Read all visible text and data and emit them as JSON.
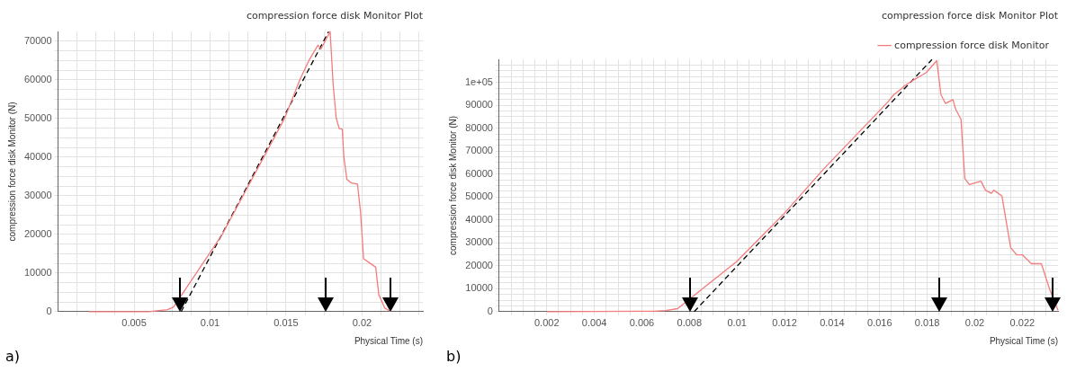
{
  "chart_data": [
    {
      "type": "line",
      "title": "compression force disk Monitor Plot",
      "xlabel": "Physical Time (s)",
      "ylabel": "compression force disk Monitor (N)",
      "annotations": [
        "a)"
      ],
      "xlim": [
        0,
        0.024
      ],
      "ylim": [
        0,
        72500
      ],
      "xticks": [
        {
          "value": 0.00125,
          "label": null
        },
        {
          "value": 0.0025,
          "label": null
        },
        {
          "value": 0.00375,
          "label": null
        },
        0.005,
        {
          "value": 0.00625,
          "label": null
        },
        {
          "value": 0.0075,
          "label": null
        },
        {
          "value": 0.00875,
          "label": null
        },
        0.01,
        {
          "value": 0.01125,
          "label": null
        },
        {
          "value": 0.0125,
          "label": null
        },
        {
          "value": 0.01375,
          "label": null
        },
        0.015,
        {
          "value": 0.01625,
          "label": null
        },
        {
          "value": 0.0175,
          "label": null
        },
        {
          "value": 0.01875,
          "label": null
        },
        0.02,
        {
          "value": 0.02125,
          "label": null
        },
        {
          "value": 0.0225,
          "label": null
        },
        {
          "value": 0.02375,
          "label": null
        }
      ],
      "yticks": [
        0,
        {
          "value": 2500,
          "label": null
        },
        {
          "value": 5000,
          "label": null
        },
        {
          "value": 7500,
          "label": null
        },
        10000,
        {
          "value": 12500,
          "label": null
        },
        {
          "value": 15000,
          "label": null
        },
        {
          "value": 17500,
          "label": null
        },
        20000,
        {
          "value": 22500,
          "label": null
        },
        {
          "value": 25000,
          "label": null
        },
        {
          "value": 27500,
          "label": null
        },
        30000,
        {
          "value": 32500,
          "label": null
        },
        {
          "value": 35000,
          "label": null
        },
        {
          "value": 37500,
          "label": null
        },
        40000,
        {
          "value": 42500,
          "label": null
        },
        {
          "value": 45000,
          "label": null
        },
        {
          "value": 47500,
          "label": null
        },
        50000,
        {
          "value": 52500,
          "label": null
        },
        {
          "value": 55000,
          "label": null
        },
        {
          "value": 57500,
          "label": null
        },
        60000,
        {
          "value": 62500,
          "label": null
        },
        {
          "value": 65000,
          "label": null
        },
        {
          "value": 67500,
          "label": null
        },
        70000
      ],
      "grid": true,
      "marker": "none",
      "series": [
        {
          "color": "#f47c7c",
          "x": [
            0.002,
            0.006,
            0.0065,
            0.0072,
            0.0076,
            0.0079,
            0.0081,
            0.0108,
            0.0149,
            0.0159,
            0.0165,
            0.0171,
            0.0173,
            0.0179,
            0.0181,
            0.0183,
            0.0185,
            0.0187,
            0.0188,
            0.019,
            0.0193,
            0.0197,
            0.0199,
            0.0201,
            0.0205,
            0.0209,
            0.0211,
            0.0215,
            0.0219
          ],
          "values": [
            0,
            0,
            200,
            500,
            1200,
            null,
            null,
            20000,
            50000,
            60000,
            65000,
            69000,
            68000,
            72500,
            58700,
            50100,
            47400,
            47200,
            40100,
            34300,
            33300,
            33000,
            25800,
            13700,
            12600,
            11500,
            4400,
            900,
            0
          ]
        },
        {
          "type": "line",
          "color": "#000000",
          "line_style": "dashed",
          "x": [
            0.0081,
            0.0178
          ],
          "values": [
            0,
            72500
          ]
        }
      ]
    },
    {
      "type": "line",
      "title": "compression force disk Monitor Plot",
      "xlabel": "Physical Time (s)",
      "ylabel": "compression force disk Monitor (N)",
      "annotations": [
        "b)"
      ],
      "xlim": [
        0,
        0.0235
      ],
      "ylim": [
        0,
        110000
      ],
      "xticks": [
        {
          "value": 0.0005,
          "label": null
        },
        {
          "value": 0.001,
          "label": null
        },
        {
          "value": 0.0015,
          "label": null
        },
        0.002,
        {
          "value": 0.0025,
          "label": null
        },
        {
          "value": 0.003,
          "label": null
        },
        {
          "value": 0.0035,
          "label": null
        },
        0.004,
        {
          "value": 0.0045,
          "label": null
        },
        {
          "value": 0.005,
          "label": null
        },
        {
          "value": 0.0055,
          "label": null
        },
        0.006,
        {
          "value": 0.0065,
          "label": null
        },
        {
          "value": 0.007,
          "label": null
        },
        {
          "value": 0.0075,
          "label": null
        },
        0.008,
        {
          "value": 0.0085,
          "label": null
        },
        {
          "value": 0.009,
          "label": null
        },
        {
          "value": 0.0095,
          "label": null
        },
        0.01,
        {
          "value": 0.0105,
          "label": null
        },
        {
          "value": 0.011,
          "label": null
        },
        {
          "value": 0.0115,
          "label": null
        },
        0.012,
        {
          "value": 0.0125,
          "label": null
        },
        {
          "value": 0.013,
          "label": null
        },
        {
          "value": 0.0135,
          "label": null
        },
        0.014,
        {
          "value": 0.0145,
          "label": null
        },
        {
          "value": 0.015,
          "label": null
        },
        {
          "value": 0.0155,
          "label": null
        },
        0.016,
        {
          "value": 0.0165,
          "label": null
        },
        {
          "value": 0.017,
          "label": null
        },
        {
          "value": 0.0175,
          "label": null
        },
        0.018,
        {
          "value": 0.0185,
          "label": null
        },
        {
          "value": 0.019,
          "label": null
        },
        {
          "value": 0.0195,
          "label": null
        },
        0.02,
        {
          "value": 0.0205,
          "label": null
        },
        {
          "value": 0.021,
          "label": null
        },
        {
          "value": 0.0215,
          "label": null
        },
        0.022,
        {
          "value": 0.0225,
          "label": null
        },
        {
          "value": 0.023,
          "label": null
        }
      ],
      "yticks": [
        0,
        {
          "value": 2500,
          "label": null
        },
        {
          "value": 5000,
          "label": null
        },
        {
          "value": 7500,
          "label": null
        },
        10000,
        {
          "value": 12500,
          "label": null
        },
        {
          "value": 15000,
          "label": null
        },
        {
          "value": 17500,
          "label": null
        },
        20000,
        {
          "value": 22500,
          "label": null
        },
        {
          "value": 25000,
          "label": null
        },
        {
          "value": 27500,
          "label": null
        },
        30000,
        {
          "value": 32500,
          "label": null
        },
        {
          "value": 35000,
          "label": null
        },
        {
          "value": 37500,
          "label": null
        },
        40000,
        {
          "value": 42500,
          "label": null
        },
        {
          "value": 45000,
          "label": null
        },
        {
          "value": 47500,
          "label": null
        },
        50000,
        {
          "value": 52500,
          "label": null
        },
        {
          "value": 55000,
          "label": null
        },
        {
          "value": 57500,
          "label": null
        },
        60000,
        {
          "value": 62500,
          "label": null
        },
        {
          "value": 65000,
          "label": null
        },
        {
          "value": 67500,
          "label": null
        },
        70000,
        {
          "value": 72500,
          "label": null
        },
        {
          "value": 75000,
          "label": null
        },
        {
          "value": 77500,
          "label": null
        },
        80000,
        {
          "value": 82500,
          "label": null
        },
        {
          "value": 85000,
          "label": null
        },
        {
          "value": 87500,
          "label": null
        },
        90000,
        {
          "value": 92500,
          "label": null
        },
        {
          "value": 95000,
          "label": null
        },
        {
          "value": 97500,
          "label": null
        },
        {
          "value": 100000,
          "label": "1e+05"
        },
        {
          "value": 102500,
          "label": null
        },
        {
          "value": 105000,
          "label": null
        },
        {
          "value": 107500,
          "label": null
        }
      ],
      "grid": true,
      "marker": "none",
      "legend": "top right",
      "series": [
        {
          "name": "compression force disk Monitor",
          "color": "#f47c7c",
          "x": [
            0.002,
            0.006,
            0.0065,
            0.007,
            0.0075,
            0.008,
            0.01,
            0.012,
            0.01366,
            0.01634,
            0.01659,
            0.01693,
            0.01703,
            0.01734,
            0.01796,
            0.0184,
            0.01858,
            0.01877,
            0.01908,
            0.0192,
            0.01942,
            0.01958,
            0.01977,
            0.02026,
            0.02045,
            0.0207,
            0.0208,
            0.02114,
            0.02151,
            0.02176,
            0.022,
            0.02238,
            0.0228,
            0.02315,
            0.02335,
            0.0235
          ],
          "values": [
            0,
            200,
            200,
            500,
            1300,
            null,
            22000,
            43000,
            62400,
            91400,
            94600,
            97300,
            98400,
            100500,
            104300,
            109500,
            94600,
            90800,
            92500,
            88200,
            83900,
            58100,
            55400,
            56900,
            53000,
            51600,
            53000,
            50500,
            27900,
            24800,
            24800,
            20900,
            20900,
            9700,
            null,
            600
          ]
        },
        {
          "type": "line",
          "color": "#000000",
          "line_style": "dashed",
          "x": [
            0.0082,
            0.0182
          ],
          "values": [
            0,
            110000
          ]
        }
      ]
    }
  ]
}
